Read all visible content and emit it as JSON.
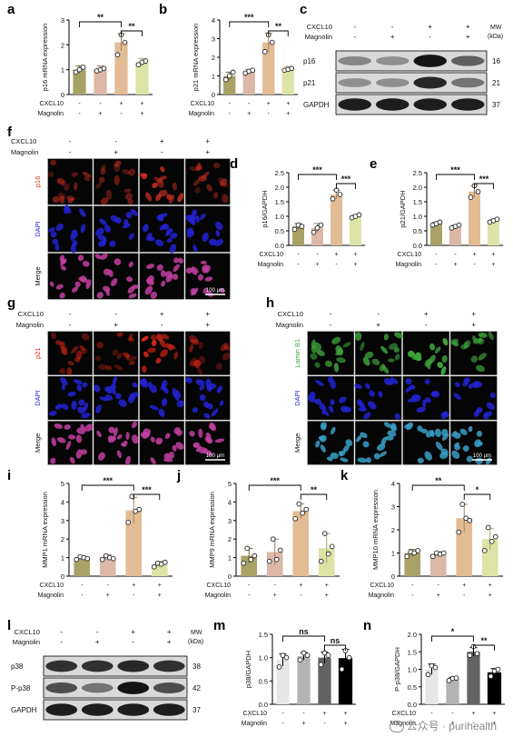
{
  "panel_labels": {
    "a": "a",
    "b": "b",
    "c": "c",
    "d": "d",
    "e": "e",
    "f": "f",
    "g": "g",
    "h": "h",
    "i": "i",
    "j": "j",
    "k": "k",
    "l": "l",
    "m": "m",
    "n": "n"
  },
  "treatments": {
    "cxcl10_label": "CXCL10",
    "magnolin_label": "Magnolin",
    "cxcl10": [
      "-",
      "-",
      "+",
      "+"
    ],
    "magnolin": [
      "-",
      "+",
      "-",
      "+"
    ]
  },
  "colors": {
    "ctrl": "#A9A267",
    "mag": "#DCB8A8",
    "cx": "#E2BC95",
    "cxmag": "#DDE3A5",
    "m_g1": "#E6E6E6",
    "m_g2": "#B3B3B3",
    "m_g3": "#636363",
    "m_g4": "#000000",
    "p16_stain": "#D83324",
    "p21_stain": "#E22818",
    "lamin_stain": "#3EA23C",
    "dapi": "#2323D6"
  },
  "chart_data": [
    {
      "id": "a",
      "type": "bar",
      "ylabel": "p16 mRNA expression",
      "ylim": [
        0,
        3
      ],
      "yticks": [
        0,
        1,
        2,
        3
      ],
      "values": [
        1.0,
        1.0,
        2.1,
        1.3
      ],
      "errors": [
        0.15,
        0.15,
        0.35,
        0.15
      ],
      "points": [
        [
          0.9,
          1.0,
          1.1
        ],
        [
          0.95,
          1.0,
          1.05
        ],
        [
          1.6,
          2.4,
          2.1
        ],
        [
          1.2,
          1.3,
          1.35
        ]
      ],
      "sig": [
        {
          "from": 0,
          "to": 2,
          "label": "**"
        },
        {
          "from": 2,
          "to": 3,
          "label": "**"
        }
      ]
    },
    {
      "id": "b",
      "type": "bar",
      "ylabel": "p21 mRNA expression",
      "ylim": [
        0,
        4
      ],
      "yticks": [
        0,
        1,
        2,
        3,
        4
      ],
      "values": [
        1.0,
        1.25,
        2.8,
        1.35
      ],
      "errors": [
        0.2,
        0.1,
        0.5,
        0.15
      ],
      "points": [
        [
          0.8,
          1.0,
          1.2
        ],
        [
          1.15,
          1.25,
          1.3
        ],
        [
          2.3,
          3.2,
          2.8
        ],
        [
          1.3,
          1.35,
          1.4
        ]
      ],
      "sig": [
        {
          "from": 0,
          "to": 2,
          "label": "***"
        },
        {
          "from": 2,
          "to": 3,
          "label": "**"
        }
      ]
    },
    {
      "id": "d",
      "type": "bar",
      "ylabel": "p16/GAPDH",
      "ylim": [
        0,
        2.5
      ],
      "yticks": [
        0.0,
        0.5,
        1.0,
        1.5,
        2.0,
        2.5
      ],
      "values": [
        0.65,
        0.6,
        1.75,
        1.0
      ],
      "errors": [
        0.1,
        0.15,
        0.15,
        0.05
      ],
      "points": [
        [
          0.55,
          0.7,
          0.65
        ],
        [
          0.45,
          0.6,
          0.7
        ],
        [
          1.6,
          1.9,
          1.75
        ],
        [
          0.95,
          1.0,
          1.05
        ]
      ],
      "sig": [
        {
          "from": 0,
          "to": 2,
          "label": "***"
        },
        {
          "from": 2,
          "to": 3,
          "label": "***"
        }
      ]
    },
    {
      "id": "e",
      "type": "bar",
      "ylabel": "p21/GAPDH",
      "ylim": [
        0,
        2.5
      ],
      "yticks": [
        0.0,
        0.5,
        1.0,
        1.5,
        2.0,
        2.5
      ],
      "values": [
        0.75,
        0.65,
        1.85,
        0.85
      ],
      "errors": [
        0.05,
        0.05,
        0.2,
        0.05
      ],
      "points": [
        [
          0.7,
          0.75,
          0.8
        ],
        [
          0.6,
          0.65,
          0.7
        ],
        [
          1.65,
          2.05,
          1.85
        ],
        [
          0.8,
          0.85,
          0.9
        ]
      ],
      "sig": [
        {
          "from": 0,
          "to": 2,
          "label": "***"
        },
        {
          "from": 2,
          "to": 3,
          "label": "***"
        }
      ]
    },
    {
      "id": "i",
      "type": "bar",
      "ylabel": "MMP1 mRNA expression",
      "ylim": [
        0,
        5
      ],
      "yticks": [
        0,
        1,
        2,
        3,
        4,
        5
      ],
      "values": [
        1.0,
        1.0,
        3.55,
        0.65
      ],
      "errors": [
        0.1,
        0.15,
        0.7,
        0.15
      ],
      "points": [
        [
          0.9,
          1.05,
          1.0,
          0.95
        ],
        [
          0.9,
          1.1,
          1.0,
          0.95
        ],
        [
          2.9,
          4.3,
          3.5,
          3.6
        ],
        [
          0.5,
          0.7,
          0.65,
          0.75
        ]
      ],
      "sig": [
        {
          "from": 0,
          "to": 2,
          "label": "***"
        },
        {
          "from": 2,
          "to": 3,
          "label": "***"
        }
      ]
    },
    {
      "id": "j",
      "type": "bar",
      "ylabel": "MMP9 mRNA expression",
      "ylim": [
        0,
        5
      ],
      "yticks": [
        0,
        1,
        2,
        3,
        4,
        5
      ],
      "values": [
        1.1,
        1.3,
        3.5,
        1.5
      ],
      "errors": [
        0.4,
        0.7,
        0.4,
        0.8
      ],
      "points": [
        [
          0.7,
          1.5,
          0.9,
          1.1
        ],
        [
          0.8,
          2.0,
          0.9,
          1.4
        ],
        [
          3.1,
          3.9,
          3.4,
          3.6
        ],
        [
          0.8,
          2.3,
          1.2,
          1.6
        ]
      ],
      "sig": [
        {
          "from": 0,
          "to": 2,
          "label": "***"
        },
        {
          "from": 2,
          "to": 3,
          "label": "**"
        }
      ]
    },
    {
      "id": "k",
      "type": "bar",
      "ylabel": "MMP10 mRNA expression",
      "ylim": [
        0,
        4
      ],
      "yticks": [
        0,
        1,
        2,
        3,
        4
      ],
      "values": [
        1.0,
        0.95,
        2.5,
        1.6
      ],
      "errors": [
        0.15,
        0.1,
        0.6,
        0.45
      ],
      "points": [
        [
          0.85,
          1.05,
          1.0,
          1.1
        ],
        [
          0.85,
          1.0,
          0.95,
          1.0
        ],
        [
          1.9,
          3.1,
          2.5,
          2.4
        ],
        [
          1.1,
          2.1,
          1.5,
          1.7
        ]
      ],
      "sig": [
        {
          "from": 0,
          "to": 2,
          "label": "**"
        },
        {
          "from": 2,
          "to": 3,
          "label": "*"
        }
      ]
    },
    {
      "id": "m",
      "type": "bar",
      "ylabel": "p38/GAPDH",
      "ylim": [
        0,
        1.5
      ],
      "yticks": [
        0.0,
        0.5,
        1.0,
        1.5
      ],
      "values": [
        0.95,
        1.03,
        1.0,
        0.98
      ],
      "errors": [
        0.13,
        0.08,
        0.12,
        0.2
      ],
      "points": [
        [
          0.8,
          1.05,
          1.0
        ],
        [
          0.95,
          1.1,
          1.05
        ],
        [
          0.85,
          1.1,
          1.05
        ],
        [
          0.75,
          1.15,
          1.0
        ]
      ],
      "sig": [
        {
          "from": 0,
          "to": 2,
          "label": "ns"
        },
        {
          "from": 2,
          "to": 3,
          "label": "ns"
        }
      ]
    },
    {
      "id": "n",
      "type": "bar",
      "ylabel": "P-p38/GAPDH",
      "ylim": [
        0,
        2.0
      ],
      "yticks": [
        0.0,
        0.5,
        1.0,
        1.5,
        2.0
      ],
      "values": [
        1.0,
        0.72,
        1.5,
        0.9
      ],
      "errors": [
        0.15,
        0.05,
        0.12,
        0.12
      ],
      "points": [
        [
          0.85,
          1.1,
          1.05
        ],
        [
          0.68,
          0.74,
          0.75
        ],
        [
          1.4,
          1.65,
          1.45
        ],
        [
          0.8,
          0.95,
          1.0
        ]
      ],
      "sig": [
        {
          "from": 0,
          "to": 2,
          "label": "*"
        },
        {
          "from": 2,
          "to": 3,
          "label": "**"
        }
      ]
    }
  ],
  "blots": {
    "c": {
      "mw_header": "MW\n(kDa)",
      "rows": [
        {
          "name": "p16",
          "mw": "16"
        },
        {
          "name": "p21",
          "mw": "21"
        },
        {
          "name": "GAPDH",
          "mw": "37"
        }
      ]
    },
    "l": {
      "mw_header": "MW\n(kDa)",
      "rows": [
        {
          "name": "p38",
          "mw": "38"
        },
        {
          "name": "P-p38",
          "mw": "42"
        },
        {
          "name": "GAPDH",
          "mw": "37"
        }
      ]
    }
  },
  "micro": {
    "f": {
      "rows": [
        "p16",
        "DAPI",
        "Merge"
      ],
      "scale": "100 μm"
    },
    "g": {
      "rows": [
        "p21",
        "DAPI",
        "Merge"
      ],
      "scale": "100 μm"
    },
    "h": {
      "rows": [
        "Lamin B1",
        "DAPI",
        "Merge"
      ],
      "scale": "100 μm"
    }
  },
  "watermark": {
    "text": "公众号 · purihealth"
  }
}
